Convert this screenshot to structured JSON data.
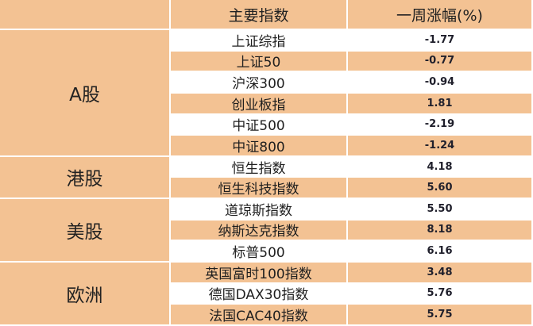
{
  "header": {
    "col_group": "",
    "col_index": "主要指数",
    "col_change": "一周涨幅(%)"
  },
  "groups": [
    {
      "label": "A股",
      "rows": 6
    },
    {
      "label": "港股",
      "rows": 2
    },
    {
      "label": "美股",
      "rows": 3
    },
    {
      "label": "欧洲",
      "rows": 3
    }
  ],
  "rows": [
    {
      "name": "上证综指",
      "value": "-1.77"
    },
    {
      "name": "上证50",
      "value": "-0.77"
    },
    {
      "name": "沪深300",
      "value": "-0.94"
    },
    {
      "name": "创业板指",
      "value": "1.81"
    },
    {
      "name": "中证500",
      "value": "-2.19"
    },
    {
      "name": "中证800",
      "value": "-1.24"
    },
    {
      "name": "恒生指数",
      "value": "4.18"
    },
    {
      "name": "恒生科技指数",
      "value": "5.60"
    },
    {
      "name": "道琼斯指数",
      "value": "5.50"
    },
    {
      "name": "纳斯达克指数",
      "value": "8.18"
    },
    {
      "name": "标普500",
      "value": "6.16"
    },
    {
      "name": "英国富时100指数",
      "value": "3.48"
    },
    {
      "name": "德国DAX30指数",
      "value": "5.76"
    },
    {
      "name": "法国CAC40指数",
      "value": "5.75"
    }
  ],
  "colors": {
    "header_bg": "#f3c293",
    "stripe_bg": "#f3c293",
    "plain_bg": "#ffffff"
  }
}
